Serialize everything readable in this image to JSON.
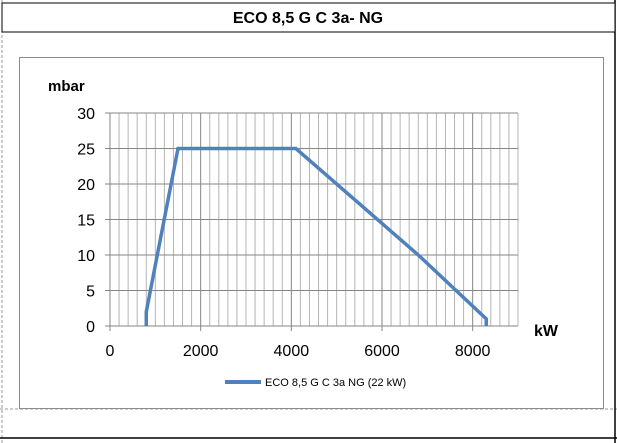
{
  "chart_data": {
    "type": "line",
    "title": "ECO 8,5 G C 3a- NG",
    "xlabel": "kW",
    "ylabel": "mbar",
    "xlim": [
      0,
      9000
    ],
    "ylim": [
      0,
      30
    ],
    "x_ticks": [
      "0",
      "2000",
      "4000",
      "6000",
      "8000"
    ],
    "x_tick_values": [
      0,
      2000,
      4000,
      6000,
      8000
    ],
    "y_ticks": [
      "0",
      "5",
      "10",
      "15",
      "20",
      "25",
      "30"
    ],
    "y_tick_values": [
      0,
      5,
      10,
      15,
      20,
      25,
      30
    ],
    "x_minor_step": 200,
    "grid": true,
    "legend_position": "bottom",
    "series": [
      {
        "name": "ECO 8,5 G C 3a NG (22 kW)",
        "color": "#4F81BD",
        "x": [
          800,
          800,
          1500,
          4100,
          6800,
          8300,
          8300
        ],
        "y": [
          0,
          2,
          25,
          25,
          10,
          1,
          0
        ]
      }
    ]
  }
}
